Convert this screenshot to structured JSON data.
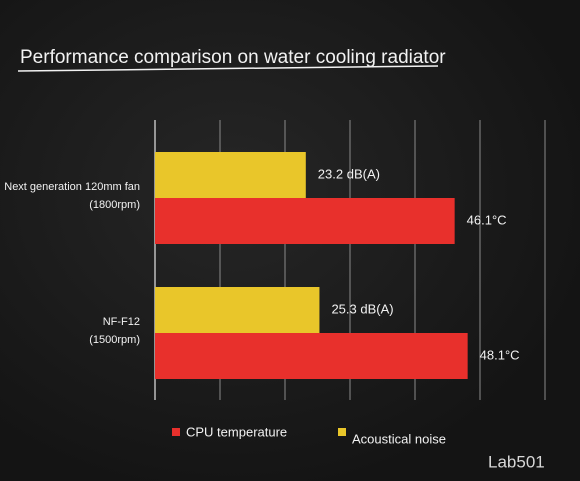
{
  "watermark": "Lab501",
  "chart_data": {
    "type": "hbar",
    "title": "Performance comparison on water cooling radiator",
    "categories": [
      "Next generation 120mm fan\n(1800rpm)",
      "NF-F12\n(1500rpm)"
    ],
    "series": [
      {
        "name": "CPU temperature",
        "color": "#e8302c",
        "values": [
          46.1,
          48.1
        ],
        "value_labels": [
          "46.1°C",
          "48.1°C"
        ]
      },
      {
        "name": "Acoustical noise",
        "color": "#e9c62a",
        "values": [
          23.2,
          25.3
        ],
        "value_labels": [
          "23.2 dB(A)",
          "25.3 dB(A)"
        ]
      }
    ],
    "xlim": [
      0,
      60
    ],
    "xticks": [
      0,
      10,
      20,
      30,
      40,
      50,
      60
    ],
    "grid": true,
    "legend": "bottom"
  }
}
